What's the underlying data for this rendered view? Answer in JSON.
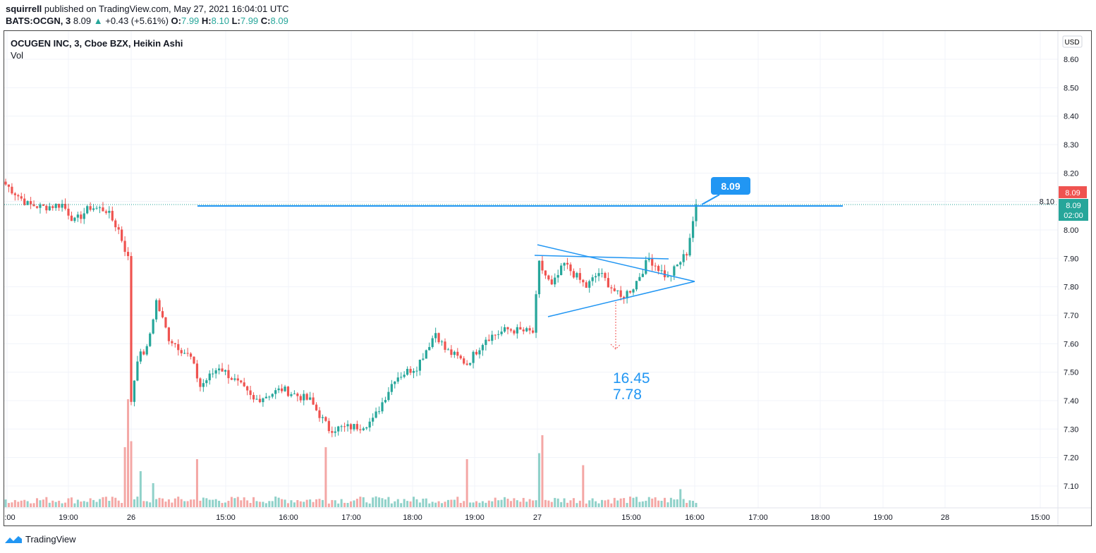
{
  "header": {
    "author": "squirrell",
    "published": "published on TradingView.com, May 27, 2021 16:04:01 UTC",
    "symbol": "BATS:OCGN, 3",
    "last": "8.09",
    "change": "+0.43 (+5.61%)",
    "o_label": "O:",
    "o": "7.99",
    "h_label": "H:",
    "h": "8.10",
    "l_label": "L:",
    "l": "7.99",
    "c_label": "C:",
    "c": "8.09"
  },
  "legend": {
    "title": "OCUGEN INC, 3, Cboe BZX, Heikin Ashi",
    "vol": "Vol"
  },
  "footer": {
    "brand": "TradingView"
  },
  "colors": {
    "up": "#26a69a",
    "down": "#ef5350",
    "drawing": "#2196f3"
  },
  "chart_data": {
    "type": "candlestick",
    "currency": "USD",
    "y_ticks": [
      "8.60",
      "8.50",
      "8.40",
      "8.30",
      "8.20",
      "8.10",
      "8.00",
      "7.90",
      "7.80",
      "7.70",
      "7.60",
      "7.50",
      "7.40",
      "7.30",
      "7.20",
      "7.10"
    ],
    "ylim": [
      7.04,
      8.66
    ],
    "x_ticks": [
      ":00",
      "19:00",
      "26",
      "15:00",
      "16:00",
      "17:00",
      "18:00",
      "19:00",
      "27",
      "15:00",
      "16:00",
      "17:00",
      "18:00",
      "19:00",
      "28",
      "15:00"
    ],
    "bars": 221,
    "price_path": [
      [
        0,
        8.16
      ],
      [
        7,
        8.09
      ],
      [
        12,
        8.08
      ],
      [
        18,
        8.09
      ],
      [
        22,
        8.03
      ],
      [
        27,
        8.08
      ],
      [
        32,
        8.07
      ],
      [
        36,
        8.0
      ],
      [
        39,
        7.9
      ],
      [
        40,
        7.4
      ],
      [
        42,
        7.55
      ],
      [
        45,
        7.58
      ],
      [
        48,
        7.75
      ],
      [
        52,
        7.62
      ],
      [
        59,
        7.55
      ],
      [
        62,
        7.45
      ],
      [
        68,
        7.52
      ],
      [
        75,
        7.45
      ],
      [
        79,
        7.4
      ],
      [
        88,
        7.44
      ],
      [
        97,
        7.4
      ],
      [
        103,
        7.3
      ],
      [
        113,
        7.31
      ],
      [
        117,
        7.33
      ],
      [
        124,
        7.48
      ],
      [
        131,
        7.52
      ],
      [
        137,
        7.64
      ],
      [
        140,
        7.58
      ],
      [
        147,
        7.53
      ],
      [
        153,
        7.62
      ],
      [
        160,
        7.65
      ],
      [
        168,
        7.64
      ],
      [
        170,
        7.88
      ],
      [
        174,
        7.8
      ],
      [
        178,
        7.88
      ],
      [
        185,
        7.8
      ],
      [
        189,
        7.85
      ],
      [
        196,
        7.76
      ],
      [
        200,
        7.8
      ],
      [
        205,
        7.9
      ],
      [
        211,
        7.83
      ],
      [
        217,
        7.92
      ],
      [
        220,
        8.09
      ]
    ],
    "volume_spikes": [
      [
        38,
        0.5
      ],
      [
        39,
        0.9
      ],
      [
        40,
        0.55
      ],
      [
        43,
        0.3
      ],
      [
        47,
        0.2
      ],
      [
        61,
        0.4
      ],
      [
        102,
        0.5
      ],
      [
        147,
        0.4
      ],
      [
        170,
        0.45
      ],
      [
        171,
        0.6
      ],
      [
        184,
        0.35
      ],
      [
        215,
        0.15
      ]
    ],
    "last_price": "8.09",
    "prev_close_label": "8.09",
    "countdown": "02:00",
    "annotations": {
      "price_callout": "8.09",
      "text_line1": "16.45",
      "text_line2": "7.78"
    }
  }
}
